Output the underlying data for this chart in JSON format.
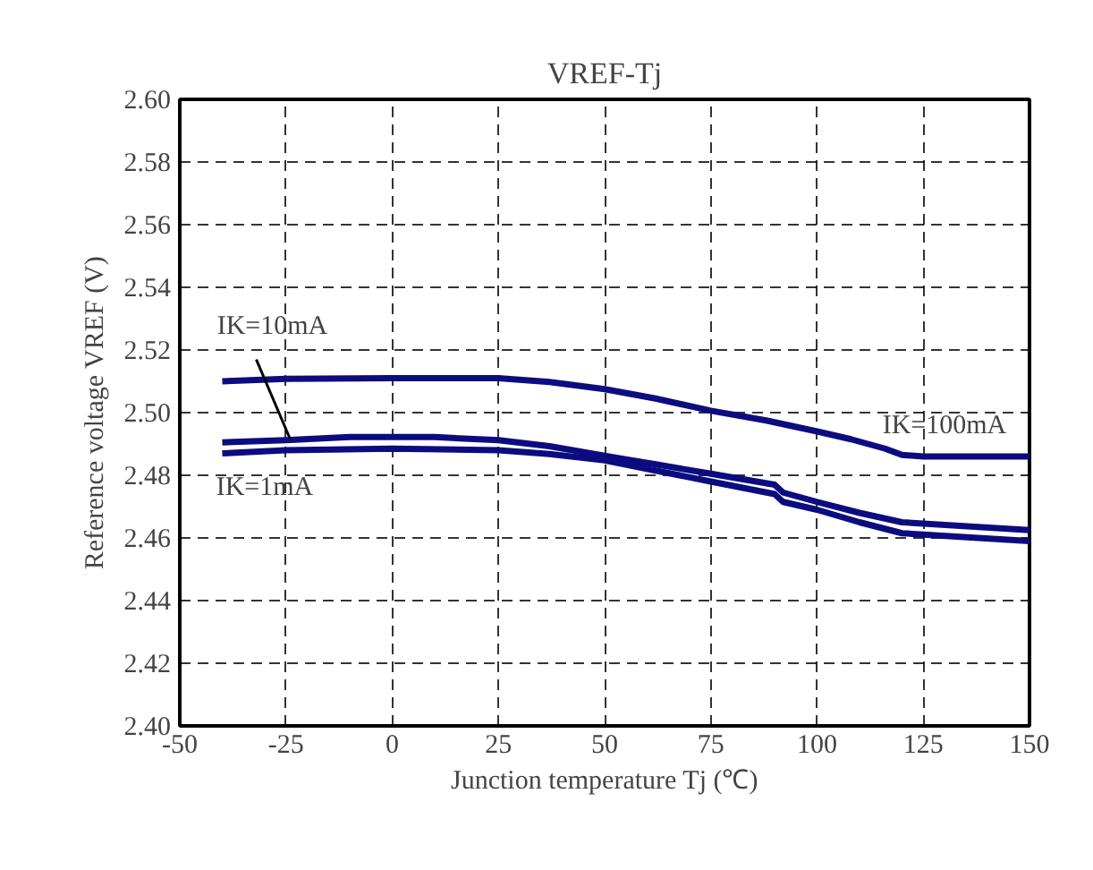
{
  "chart_data": {
    "type": "line",
    "title": "VREF-Tj",
    "xlabel": "Junction temperature Tj (℃)",
    "ylabel": "Reference voltage VREF (V)",
    "xlim": [
      -50,
      150
    ],
    "ylim": [
      2.4,
      2.6
    ],
    "xticks": [
      -50,
      -25,
      0,
      25,
      50,
      75,
      100,
      125,
      150
    ],
    "yticks": [
      {
        "value": 2.4,
        "label": "2.40"
      },
      {
        "value": 2.42,
        "label": "2.42"
      },
      {
        "value": 2.44,
        "label": "2.44"
      },
      {
        "value": 2.46,
        "label": "2.46"
      },
      {
        "value": 2.48,
        "label": "2.48"
      },
      {
        "value": 2.5,
        "label": "2.50"
      },
      {
        "value": 2.52,
        "label": "2.52"
      },
      {
        "value": 2.54,
        "label": "2.54"
      },
      {
        "value": 2.56,
        "label": "2.56"
      },
      {
        "value": 2.58,
        "label": "2.58"
      },
      {
        "value": 2.6,
        "label": "2.60"
      }
    ],
    "grid": true,
    "line_style": "solid",
    "marker": "none",
    "series": [
      {
        "color": "#0c0c80",
        "x": [
          -40,
          -25,
          0,
          25,
          37,
          50,
          62,
          75,
          88,
          100,
          108,
          116,
          120,
          125,
          150
        ],
        "values": [
          2.51,
          2.5108,
          2.511,
          2.511,
          2.5098,
          2.5075,
          2.5045,
          2.5006,
          2.4975,
          2.494,
          2.4915,
          2.4885,
          2.4865,
          2.486,
          2.486
        ]
      },
      {
        "color": "#0c0c80",
        "x": [
          -40,
          -25,
          -10,
          10,
          25,
          37,
          50,
          62,
          75,
          90,
          92,
          100,
          110,
          120,
          150
        ],
        "values": [
          2.4905,
          2.4912,
          2.4922,
          2.4922,
          2.4912,
          2.4893,
          2.4862,
          2.4835,
          2.4805,
          2.477,
          2.4745,
          2.4715,
          2.468,
          2.465,
          2.4625
        ]
      },
      {
        "color": "#0c0c80",
        "x": [
          -40,
          -25,
          0,
          25,
          37,
          50,
          62,
          75,
          90,
          92,
          100,
          110,
          120,
          150
        ],
        "values": [
          2.487,
          2.488,
          2.4885,
          2.488,
          2.4868,
          2.4848,
          2.4815,
          2.478,
          2.474,
          2.4715,
          2.469,
          2.465,
          2.4615,
          2.459
        ]
      }
    ],
    "annotations": [
      {
        "text": "IK=100mA",
        "x": 130,
        "y": 2.486
      },
      {
        "text": "IK=10mA",
        "x": -24,
        "y": 2.4915
      },
      {
        "text": "IK=1mA",
        "x": -30,
        "y": 2.487
      }
    ]
  }
}
